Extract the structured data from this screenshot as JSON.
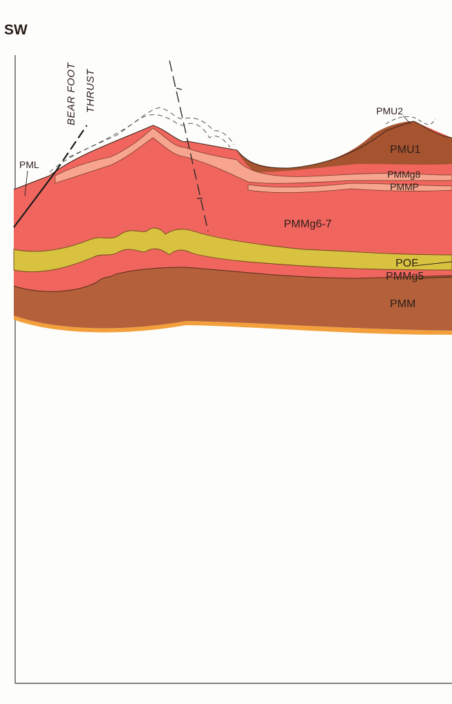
{
  "orientation_label": "SW",
  "fault_labels": {
    "line1": "BEAR FOOT",
    "line2": "THRUST"
  },
  "units": {
    "pml": "PML",
    "pmu2": "PMU2",
    "pmu1": "PMU1",
    "pmmg8": "PMMg8",
    "pmmp": "PMMP",
    "pmmg67": "PMMg6-7",
    "pof": "POF",
    "pmmg5": "PMMg5",
    "pmm": "PMM"
  },
  "colors": {
    "page": "#fdfdfb",
    "salmon": "#f0665e",
    "salmon_light": "#f7a58e",
    "brown": "#b4603a",
    "brown_dark": "#a6532f",
    "yellow": "#d9c240",
    "orange_base": "#f3a03c",
    "outline": "#2b1f1a"
  }
}
